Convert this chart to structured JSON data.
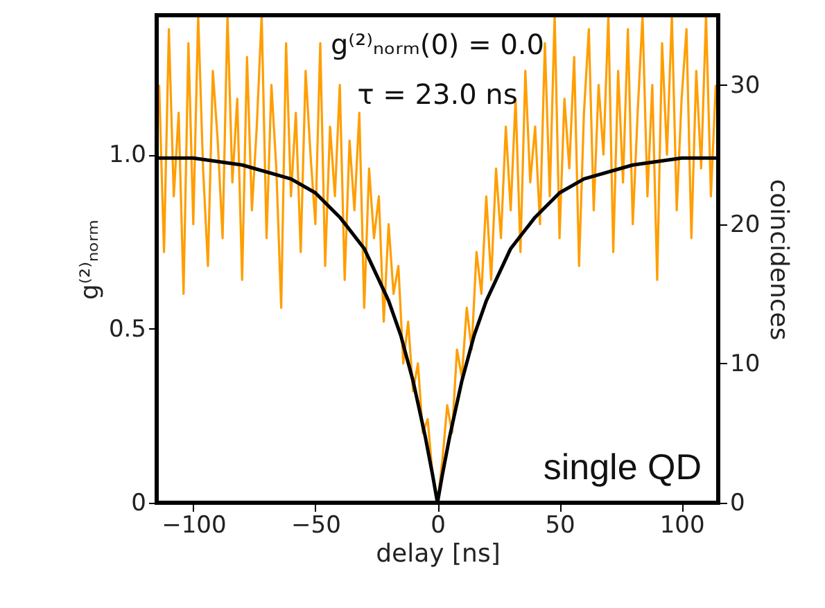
{
  "chart_data": {
    "type": "line",
    "xlabel": "delay [ns]",
    "ylabel": "g⁽²⁾ₙₒᵣₘ",
    "y2label": "coincidences",
    "xlim": [
      -115,
      115
    ],
    "xticks": [
      -100,
      -50,
      0,
      50,
      100
    ],
    "ylim": [
      0,
      1.4
    ],
    "yticks": [
      0,
      0.5,
      {
        "value": 1,
        "label": "1.0"
      }
    ],
    "y2lim": [
      0,
      35
    ],
    "y2ticks": [
      0,
      10,
      20,
      30
    ],
    "grid": false,
    "marker": "none",
    "line_style": "solid",
    "annotations": [
      "g⁽²⁾ₙₒᵣₘ(0) = 0.0",
      "τ = 23.0 ns",
      "single QD"
    ],
    "series": [
      {
        "color": "#ff9e00",
        "axis": "y2",
        "x": [
          -114,
          -112,
          -110,
          -108,
          -106,
          -104,
          -102,
          -100,
          -98,
          -96,
          -94,
          -92,
          -90,
          -88,
          -86,
          -84,
          -82,
          -80,
          -78,
          -76,
          -74,
          -72,
          -70,
          -68,
          -66,
          -64,
          -62,
          -60,
          -58,
          -56,
          -54,
          -52,
          -50,
          -48,
          -46,
          -44,
          -42,
          -40,
          -38,
          -36,
          -34,
          -32,
          -30,
          -28,
          -26,
          -24,
          -22,
          -20,
          -18,
          -16,
          -14,
          -12,
          -10,
          -8,
          -6,
          -4,
          -2,
          0,
          2,
          4,
          6,
          8,
          10,
          12,
          14,
          16,
          18,
          20,
          22,
          24,
          26,
          28,
          30,
          32,
          34,
          36,
          38,
          40,
          42,
          44,
          46,
          48,
          50,
          52,
          54,
          56,
          58,
          60,
          62,
          64,
          66,
          68,
          70,
          72,
          74,
          76,
          78,
          80,
          82,
          84,
          86,
          88,
          90,
          92,
          94,
          96,
          98,
          100,
          102,
          104,
          106,
          108,
          110,
          112,
          114
        ],
        "values": [
          30,
          18,
          34,
          22,
          28,
          15,
          33,
          20,
          35,
          24,
          17,
          31,
          26,
          19,
          35,
          23,
          29,
          16,
          32,
          21,
          27,
          35,
          19,
          30,
          24,
          14,
          33,
          22,
          28,
          18,
          31,
          25,
          20,
          33,
          17,
          27,
          22,
          30,
          16,
          26,
          21,
          28,
          14,
          24,
          19,
          22,
          13,
          20,
          15,
          17,
          10,
          13,
          8,
          10,
          5,
          6,
          2,
          0,
          3,
          7,
          5,
          11,
          9,
          14,
          11,
          18,
          15,
          22,
          16,
          24,
          19,
          27,
          21,
          29,
          18,
          31,
          23,
          27,
          20,
          33,
          22,
          35,
          19,
          29,
          24,
          32,
          17,
          28,
          34,
          21,
          30,
          25,
          35,
          18,
          31,
          23,
          34,
          20,
          28,
          35,
          22,
          30,
          16,
          33,
          25,
          35,
          21,
          29,
          34,
          19,
          31,
          24,
          35,
          22,
          30
        ]
      },
      {
        "color": "#000000",
        "axis": "y",
        "x": [
          -115,
          -100,
          -80,
          -60,
          -50,
          -40,
          -30,
          -20,
          -15,
          -10,
          -5,
          -2,
          0,
          2,
          5,
          10,
          15,
          20,
          30,
          40,
          50,
          60,
          80,
          100,
          115
        ],
        "values": [
          0.99,
          0.99,
          0.97,
          0.93,
          0.89,
          0.82,
          0.73,
          0.58,
          0.48,
          0.35,
          0.19,
          0.08,
          0,
          0.08,
          0.19,
          0.35,
          0.48,
          0.58,
          0.73,
          0.82,
          0.89,
          0.93,
          0.97,
          0.99,
          0.99
        ]
      }
    ]
  }
}
